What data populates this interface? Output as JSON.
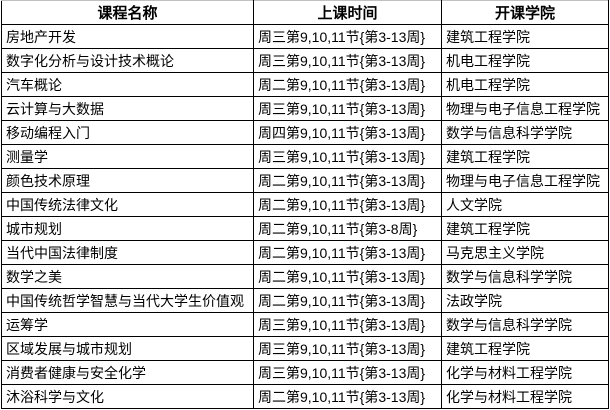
{
  "colors": {
    "grid_border": "#000000",
    "top_edge": "#c0c0c0",
    "background": "#ffffff",
    "text": "#000000"
  },
  "table": {
    "headers": [
      "课程名称",
      "上课时间",
      "开课学院"
    ],
    "rows": [
      [
        "房地产开发",
        "周三第9,10,11节{第3-13周}",
        "建筑工程学院"
      ],
      [
        "数字化分析与设计技术概论",
        "周三第9,10,11节{第3-13周}",
        "机电工程学院"
      ],
      [
        "汽车概论",
        "周二第9,10,11节{第3-13周}",
        "机电工程学院"
      ],
      [
        "云计算与大数据",
        "周三第9,10,11节{第3-13周}",
        "物理与电子信息工程学院"
      ],
      [
        "移动编程入门",
        "周四第9,10,11节{第3-13周}",
        "数学与信息科学学院"
      ],
      [
        "测量学",
        "周三第9,10,11节{第3-13周}",
        "建筑工程学院"
      ],
      [
        "颜色技术原理",
        "周二第9,10,11节{第3-13周}",
        "物理与电子信息工程学院"
      ],
      [
        "中国传统法律文化",
        "周二第9,10,11节{第3-13周}",
        "人文学院"
      ],
      [
        "城市规划",
        "周二第9,10,11节{第3-8周}",
        "建筑工程学院"
      ],
      [
        "当代中国法律制度",
        "周二第9,10,11节{第3-13周}",
        "马克思主义学院"
      ],
      [
        "数学之美",
        "周二第9,10,11节{第3-13周}",
        "数学与信息科学学院"
      ],
      [
        "中国传统哲学智慧与当代大学生价值观",
        "周二第9,10,11节{第3-13周}",
        "法政学院"
      ],
      [
        "运筹学",
        "周三第9,10,11节{第3-13周}",
        "数学与信息科学学院"
      ],
      [
        "区域发展与城市规划",
        "周三第9,10,11节{第3-13周}",
        "建筑工程学院"
      ],
      [
        "消费者健康与安全化学",
        "周三第9,10,11节{第3-13周}",
        "化学与材料工程学院"
      ],
      [
        "沐浴科学与文化",
        "周二第9,10,11节{第3-13周}",
        "化学与材料工程学院"
      ]
    ]
  }
}
